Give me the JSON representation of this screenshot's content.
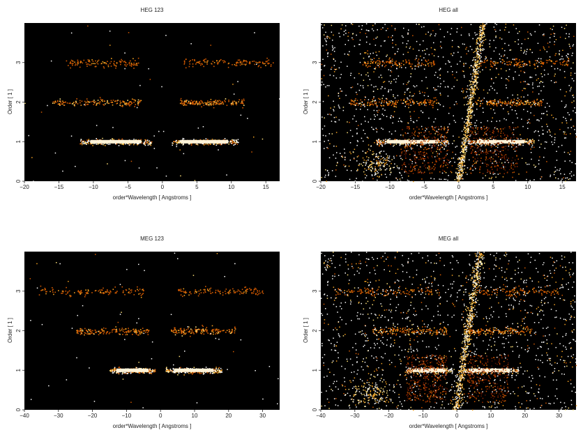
{
  "chart_data": [
    {
      "type": "heatmap",
      "title": "HEG 123",
      "xlabel": "order*Wavelength [ Angstroms ]",
      "ylabel": "Order [ 1 ]",
      "xlim": [
        -20,
        17
      ],
      "ylim": [
        0,
        4
      ],
      "xticks": [
        -20,
        -15,
        -10,
        -5,
        0,
        5,
        10,
        15
      ],
      "yticks": [
        0,
        1,
        2,
        3
      ],
      "bands": [
        {
          "order": 1,
          "x_ranges": [
            [
              -12,
              -1.5
            ],
            [
              1.2,
              11
            ]
          ],
          "intensity": "high"
        },
        {
          "order": 2,
          "x_ranges": [
            [
              -16,
              -3
            ],
            [
              2.5,
              12
            ]
          ],
          "intensity": "medium"
        },
        {
          "order": 3,
          "x_ranges": [
            [
              -14,
              -3.5
            ],
            [
              3,
              16
            ]
          ],
          "intensity": "low"
        }
      ],
      "background_noise": "low"
    },
    {
      "type": "heatmap",
      "title": "HEG all",
      "xlabel": "order*Wavelength [ Angstroms ]",
      "ylabel": "Order [ 1 ]",
      "xlim": [
        -20,
        17
      ],
      "ylim": [
        0,
        4
      ],
      "xticks": [
        -20,
        -15,
        -10,
        -5,
        0,
        5,
        10,
        15
      ],
      "yticks": [
        0,
        1,
        2,
        3
      ],
      "bands": [
        {
          "order": 1,
          "x_ranges": [
            [
              -12,
              -1.5
            ],
            [
              1.2,
              11
            ]
          ],
          "intensity": "high"
        },
        {
          "order": 2,
          "x_ranges": [
            [
              -16,
              -3
            ],
            [
              2.5,
              12
            ]
          ],
          "intensity": "medium"
        },
        {
          "order": 3,
          "x_ranges": [
            [
              -14,
              -3.5
            ],
            [
              3,
              16
            ]
          ],
          "intensity": "low"
        }
      ],
      "background_noise": "high"
    },
    {
      "type": "heatmap",
      "title": "MEG 123",
      "xlabel": "order*Wavelength [ Angstroms ]",
      "ylabel": "Order [ 1 ]",
      "xlim": [
        -40,
        35
      ],
      "ylim": [
        0,
        4
      ],
      "xticks": [
        -40,
        -30,
        -20,
        -10,
        0,
        10,
        20,
        30
      ],
      "yticks": [
        0,
        1,
        2,
        3
      ],
      "bands": [
        {
          "order": 1,
          "x_ranges": [
            [
              -15,
              -1.5
            ],
            [
              1.5,
              18
            ]
          ],
          "intensity": "high"
        },
        {
          "order": 2,
          "x_ranges": [
            [
              -25,
              -3
            ],
            [
              3,
              22
            ]
          ],
          "intensity": "medium"
        },
        {
          "order": 3,
          "x_ranges": [
            [
              -36,
              -5
            ],
            [
              5,
              30
            ]
          ],
          "intensity": "low"
        }
      ],
      "background_noise": "low"
    },
    {
      "type": "heatmap",
      "title": "MEG all",
      "xlabel": "order*Wavelength [ Angstroms ]",
      "ylabel": "Order [ 1 ]",
      "xlim": [
        -40,
        35
      ],
      "ylim": [
        0,
        4
      ],
      "xticks": [
        -40,
        -30,
        -20,
        -10,
        0,
        10,
        20,
        30
      ],
      "yticks": [
        0,
        1,
        2,
        3
      ],
      "bands": [
        {
          "order": 1,
          "x_ranges": [
            [
              -15,
              -1.5
            ],
            [
              1.5,
              18
            ]
          ],
          "intensity": "high"
        },
        {
          "order": 2,
          "x_ranges": [
            [
              -25,
              -3
            ],
            [
              3,
              22
            ]
          ],
          "intensity": "medium"
        },
        {
          "order": 3,
          "x_ranges": [
            [
              -36,
              -5
            ],
            [
              5,
              30
            ]
          ],
          "intensity": "low"
        }
      ],
      "background_noise": "high"
    }
  ]
}
